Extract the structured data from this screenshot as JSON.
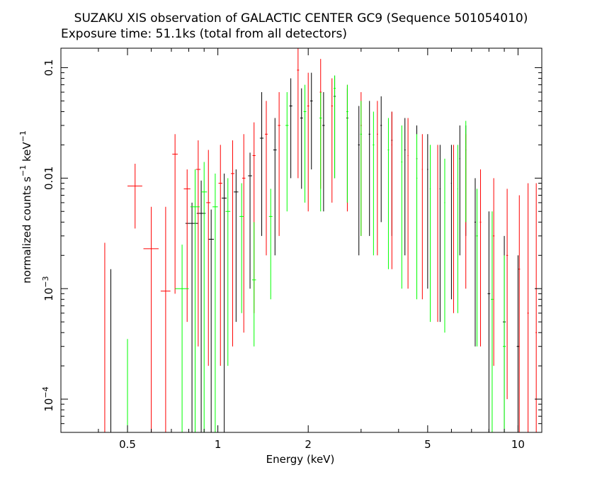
{
  "chart_data": {
    "type": "scatter",
    "title": "SUZAKU XIS observation of GALACTIC CENTER GC9 (Sequence 501054010)",
    "subtitle": "Exposure time: 51.1ks (total from all detectors)",
    "xlabel": "Energy (keV)",
    "ylabel": "normalized counts s",
    "ylabel_sup1": "−1",
    "ylabel_mid": " keV",
    "ylabel_sup2": "−1",
    "x_scale": "log",
    "y_scale": "log",
    "xlim": [
      0.3,
      12
    ],
    "ylim": [
      5e-05,
      0.15
    ],
    "x_ticks": [
      {
        "value": 0.5,
        "label": "0.5"
      },
      {
        "value": 1,
        "label": "1"
      },
      {
        "value": 2,
        "label": "2"
      },
      {
        "value": 5,
        "label": "5"
      },
      {
        "value": 10,
        "label": "10"
      }
    ],
    "y_ticks": [
      {
        "value": 0.1,
        "label": "0.1",
        "sup": ""
      },
      {
        "value": 0.01,
        "label": "0.01",
        "sup": ""
      },
      {
        "value": 0.001,
        "label": "10",
        "sup": "−3"
      },
      {
        "value": 0.0001,
        "label": "10",
        "sup": "−4"
      }
    ],
    "grid": false,
    "legend": "none",
    "series": [
      {
        "color": "#000000",
        "points": [
          {
            "x": 0.44,
            "y": 0.0006,
            "xerr": 0.0,
            "ylo": 5e-05,
            "yhi": 0.0015
          },
          {
            "x": 0.82,
            "y": 0.0039,
            "xerr": 0.04,
            "ylo": 5e-05,
            "yhi": 0.006
          },
          {
            "x": 0.88,
            "y": 0.0048,
            "xerr": 0.03,
            "ylo": 5e-05,
            "yhi": 0.0095
          },
          {
            "x": 0.95,
            "y": 0.0028,
            "xerr": 0.02,
            "ylo": 5e-05,
            "yhi": 0.0052
          },
          {
            "x": 1.05,
            "y": 0.0066,
            "xerr": 0.02,
            "ylo": 5e-05,
            "yhi": 0.011
          },
          {
            "x": 1.15,
            "y": 0.0075,
            "xerr": 0.02,
            "ylo": 0.0005,
            "yhi": 0.012
          },
          {
            "x": 1.28,
            "y": 0.0105,
            "xerr": 0.02,
            "ylo": 0.001,
            "yhi": 0.017
          },
          {
            "x": 1.4,
            "y": 0.023,
            "xerr": 0.02,
            "ylo": 0.003,
            "yhi": 0.06
          },
          {
            "x": 1.55,
            "y": 0.018,
            "xerr": 0.02,
            "ylo": 0.002,
            "yhi": 0.035
          },
          {
            "x": 1.75,
            "y": 0.045,
            "xerr": 0.02,
            "ylo": 0.01,
            "yhi": 0.08
          },
          {
            "x": 1.9,
            "y": 0.035,
            "xerr": 0.02,
            "ylo": 0.008,
            "yhi": 0.065
          },
          {
            "x": 2.05,
            "y": 0.05,
            "xerr": 0.02,
            "ylo": 0.012,
            "yhi": 0.09
          },
          {
            "x": 2.25,
            "y": 0.03,
            "xerr": 0.02,
            "ylo": 0.005,
            "yhi": 0.06
          },
          {
            "x": 2.45,
            "y": 0.055,
            "xerr": 0.02,
            "ylo": 0.01,
            "yhi": 0.085
          },
          {
            "x": 2.7,
            "y": 0.035,
            "xerr": 0.02,
            "ylo": 0.006,
            "yhi": 0.065
          },
          {
            "x": 2.95,
            "y": 0.02,
            "xerr": 0.02,
            "ylo": 0.002,
            "yhi": 0.045
          },
          {
            "x": 3.2,
            "y": 0.025,
            "xerr": 0.02,
            "ylo": 0.003,
            "yhi": 0.05
          },
          {
            "x": 3.5,
            "y": 0.03,
            "xerr": 0.02,
            "ylo": 0.004,
            "yhi": 0.055
          },
          {
            "x": 3.8,
            "y": 0.022,
            "xerr": 0.02,
            "ylo": 0.003,
            "yhi": 0.04
          },
          {
            "x": 4.2,
            "y": 0.018,
            "xerr": 0.02,
            "ylo": 0.002,
            "yhi": 0.035
          },
          {
            "x": 4.6,
            "y": 0.015,
            "xerr": 0.02,
            "ylo": 0.0015,
            "yhi": 0.03
          },
          {
            "x": 5.0,
            "y": 0.012,
            "xerr": 0.02,
            "ylo": 0.001,
            "yhi": 0.025
          },
          {
            "x": 5.5,
            "y": 0.008,
            "xerr": 0.02,
            "ylo": 0.0005,
            "yhi": 0.02
          },
          {
            "x": 6.0,
            "y": 0.009,
            "xerr": 0.02,
            "ylo": 0.0008,
            "yhi": 0.02
          },
          {
            "x": 6.4,
            "y": 0.015,
            "xerr": 0.02,
            "ylo": 0.002,
            "yhi": 0.03
          },
          {
            "x": 6.7,
            "y": 0.018,
            "xerr": 0.02,
            "ylo": 0.003,
            "yhi": 0.03
          },
          {
            "x": 7.2,
            "y": 0.004,
            "xerr": 0.04,
            "ylo": 0.0003,
            "yhi": 0.01
          },
          {
            "x": 8.0,
            "y": 0.0009,
            "xerr": 0.08,
            "ylo": 5e-05,
            "yhi": 0.005
          },
          {
            "x": 9.0,
            "y": 0.0005,
            "xerr": 0.1,
            "ylo": 5e-05,
            "yhi": 0.003
          },
          {
            "x": 10.0,
            "y": 0.0003,
            "xerr": 0.1,
            "ylo": 5e-05,
            "yhi": 0.002
          }
        ]
      },
      {
        "color": "#ff0000",
        "points": [
          {
            "x": 0.42,
            "y": 0.0005,
            "xerr": 0.0,
            "ylo": 5e-05,
            "yhi": 0.0026
          },
          {
            "x": 0.53,
            "y": 0.0085,
            "xerr": 0.03,
            "ylo": 0.0035,
            "yhi": 0.0135
          },
          {
            "x": 0.6,
            "y": 0.0023,
            "xerr": 0.035,
            "ylo": 5e-05,
            "yhi": 0.0055
          },
          {
            "x": 0.67,
            "y": 0.00095,
            "xerr": 0.025,
            "ylo": 5e-05,
            "yhi": 0.0055
          },
          {
            "x": 0.72,
            "y": 0.0165,
            "xerr": 0.015,
            "ylo": 0.0009,
            "yhi": 0.025
          },
          {
            "x": 0.79,
            "y": 0.008,
            "xerr": 0.02,
            "ylo": 0.0005,
            "yhi": 0.012
          },
          {
            "x": 0.86,
            "y": 0.012,
            "xerr": 0.015,
            "ylo": 0.0003,
            "yhi": 0.022
          },
          {
            "x": 0.93,
            "y": 0.006,
            "xerr": 0.015,
            "ylo": 0.0002,
            "yhi": 0.018
          },
          {
            "x": 1.02,
            "y": 0.009,
            "xerr": 0.015,
            "ylo": 0.0002,
            "yhi": 0.02
          },
          {
            "x": 1.12,
            "y": 0.011,
            "xerr": 0.015,
            "ylo": 0.0003,
            "yhi": 0.022
          },
          {
            "x": 1.22,
            "y": 0.01,
            "xerr": 0.015,
            "ylo": 0.0004,
            "yhi": 0.025
          },
          {
            "x": 1.32,
            "y": 0.016,
            "xerr": 0.015,
            "ylo": 0.0006,
            "yhi": 0.032
          },
          {
            "x": 1.45,
            "y": 0.025,
            "xerr": 0.015,
            "ylo": 0.002,
            "yhi": 0.05
          },
          {
            "x": 1.6,
            "y": 0.03,
            "xerr": 0.015,
            "ylo": 0.003,
            "yhi": 0.06
          },
          {
            "x": 1.85,
            "y": 0.095,
            "xerr": 0.015,
            "ylo": 0.01,
            "yhi": 0.15
          },
          {
            "x": 2.0,
            "y": 0.045,
            "xerr": 0.015,
            "ylo": 0.005,
            "yhi": 0.09
          },
          {
            "x": 2.2,
            "y": 0.06,
            "xerr": 0.015,
            "ylo": 0.008,
            "yhi": 0.12
          },
          {
            "x": 2.4,
            "y": 0.045,
            "xerr": 0.015,
            "ylo": 0.006,
            "yhi": 0.08
          },
          {
            "x": 2.7,
            "y": 0.04,
            "xerr": 0.015,
            "ylo": 0.005,
            "yhi": 0.07
          },
          {
            "x": 3.0,
            "y": 0.03,
            "xerr": 0.015,
            "ylo": 0.003,
            "yhi": 0.06
          },
          {
            "x": 3.4,
            "y": 0.025,
            "xerr": 0.015,
            "ylo": 0.002,
            "yhi": 0.05
          },
          {
            "x": 3.8,
            "y": 0.02,
            "xerr": 0.015,
            "ylo": 0.0015,
            "yhi": 0.04
          },
          {
            "x": 4.3,
            "y": 0.016,
            "xerr": 0.015,
            "ylo": 0.001,
            "yhi": 0.035
          },
          {
            "x": 4.8,
            "y": 0.012,
            "xerr": 0.015,
            "ylo": 0.0008,
            "yhi": 0.025
          },
          {
            "x": 5.4,
            "y": 0.008,
            "xerr": 0.015,
            "ylo": 0.0005,
            "yhi": 0.02
          },
          {
            "x": 6.1,
            "y": 0.01,
            "xerr": 0.015,
            "ylo": 0.0006,
            "yhi": 0.02
          },
          {
            "x": 6.7,
            "y": 0.012,
            "xerr": 0.015,
            "ylo": 0.001,
            "yhi": 0.025
          },
          {
            "x": 7.5,
            "y": 0.004,
            "xerr": 0.04,
            "ylo": 0.0003,
            "yhi": 0.012
          },
          {
            "x": 8.3,
            "y": 0.003,
            "xerr": 0.05,
            "ylo": 0.0002,
            "yhi": 0.01
          },
          {
            "x": 9.2,
            "y": 0.002,
            "xerr": 0.06,
            "ylo": 0.0001,
            "yhi": 0.008
          },
          {
            "x": 10.1,
            "y": 0.0015,
            "xerr": 0.06,
            "ylo": 5e-05,
            "yhi": 0.007
          },
          {
            "x": 10.8,
            "y": 0.0006,
            "xerr": 0.06,
            "ylo": 5e-05,
            "yhi": 0.009
          },
          {
            "x": 11.5,
            "y": 0.0004,
            "xerr": 0.06,
            "ylo": 5e-05,
            "yhi": 0.009
          }
        ]
      },
      {
        "color": "#00ff00",
        "points": [
          {
            "x": 0.5,
            "y": 0.00015,
            "xerr": 0.0,
            "ylo": 5e-05,
            "yhi": 0.00035
          },
          {
            "x": 0.76,
            "y": 0.001,
            "xerr": 0.04,
            "ylo": 5e-05,
            "yhi": 0.0025
          },
          {
            "x": 0.84,
            "y": 0.0055,
            "xerr": 0.03,
            "ylo": 5e-05,
            "yhi": 0.012
          },
          {
            "x": 0.9,
            "y": 0.0075,
            "xerr": 0.02,
            "ylo": 5e-05,
            "yhi": 0.014
          },
          {
            "x": 0.98,
            "y": 0.0055,
            "xerr": 0.02,
            "ylo": 5e-05,
            "yhi": 0.011
          },
          {
            "x": 1.08,
            "y": 0.005,
            "xerr": 0.02,
            "ylo": 0.0002,
            "yhi": 0.01
          },
          {
            "x": 1.2,
            "y": 0.0045,
            "xerr": 0.02,
            "ylo": 0.0006,
            "yhi": 0.009
          },
          {
            "x": 1.32,
            "y": 0.0012,
            "xerr": 0.02,
            "ylo": 0.0003,
            "yhi": 0.004
          },
          {
            "x": 1.5,
            "y": 0.0045,
            "xerr": 0.02,
            "ylo": 0.0008,
            "yhi": 0.008
          },
          {
            "x": 1.7,
            "y": 0.03,
            "xerr": 0.02,
            "ylo": 0.005,
            "yhi": 0.06
          },
          {
            "x": 1.95,
            "y": 0.04,
            "xerr": 0.02,
            "ylo": 0.006,
            "yhi": 0.07
          },
          {
            "x": 2.2,
            "y": 0.035,
            "xerr": 0.02,
            "ylo": 0.005,
            "yhi": 0.06
          },
          {
            "x": 2.45,
            "y": 0.065,
            "xerr": 0.02,
            "ylo": 0.01,
            "yhi": 0.085
          },
          {
            "x": 2.7,
            "y": 0.04,
            "xerr": 0.02,
            "ylo": 0.006,
            "yhi": 0.07
          },
          {
            "x": 3.0,
            "y": 0.025,
            "xerr": 0.02,
            "ylo": 0.003,
            "yhi": 0.05
          },
          {
            "x": 3.3,
            "y": 0.02,
            "xerr": 0.02,
            "ylo": 0.002,
            "yhi": 0.04
          },
          {
            "x": 3.7,
            "y": 0.018,
            "xerr": 0.02,
            "ylo": 0.0015,
            "yhi": 0.035
          },
          {
            "x": 4.1,
            "y": 0.014,
            "xerr": 0.02,
            "ylo": 0.001,
            "yhi": 0.03
          },
          {
            "x": 4.6,
            "y": 0.01,
            "xerr": 0.02,
            "ylo": 0.0008,
            "yhi": 0.025
          },
          {
            "x": 5.1,
            "y": 0.008,
            "xerr": 0.02,
            "ylo": 0.0005,
            "yhi": 0.02
          },
          {
            "x": 5.7,
            "y": 0.006,
            "xerr": 0.02,
            "ylo": 0.0004,
            "yhi": 0.015
          },
          {
            "x": 6.3,
            "y": 0.008,
            "xerr": 0.02,
            "ylo": 0.0006,
            "yhi": 0.02
          },
          {
            "x": 6.7,
            "y": 0.02,
            "xerr": 0.02,
            "ylo": 0.004,
            "yhi": 0.033
          },
          {
            "x": 7.3,
            "y": 0.003,
            "xerr": 0.05,
            "ylo": 0.0003,
            "yhi": 0.008
          },
          {
            "x": 8.2,
            "y": 0.0008,
            "xerr": 0.08,
            "ylo": 5e-05,
            "yhi": 0.005
          },
          {
            "x": 9.0,
            "y": 0.0003,
            "xerr": 0.1,
            "ylo": 5e-05,
            "yhi": 0.002
          }
        ]
      }
    ]
  }
}
